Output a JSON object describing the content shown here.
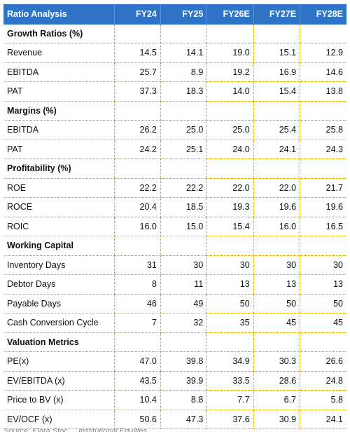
{
  "table": {
    "header": [
      "Ratio Analysis",
      "FY24",
      "FY25",
      "FY26E",
      "FY27E",
      "FY28E"
    ],
    "rows": [
      {
        "type": "section",
        "label": "Growth Ratios (%)"
      },
      {
        "type": "data",
        "label": "Revenue",
        "values": [
          "14.5",
          "14.1",
          "19.0",
          "15.1",
          "12.9"
        ]
      },
      {
        "type": "data",
        "label": "EBITDA",
        "values": [
          "25.7",
          "8.9",
          "19.2",
          "16.9",
          "14.6"
        ]
      },
      {
        "type": "data",
        "label": "PAT",
        "values": [
          "37.3",
          "18.3",
          "14.0",
          "15.4",
          "13.8"
        ]
      },
      {
        "type": "section",
        "label": "Margins (%)"
      },
      {
        "type": "data",
        "label": "EBITDA",
        "values": [
          "26.2",
          "25.0",
          "25.0",
          "25.4",
          "25.8"
        ]
      },
      {
        "type": "data",
        "label": "PAT",
        "values": [
          "24.2",
          "25.1",
          "24.0",
          "24.1",
          "24.3"
        ]
      },
      {
        "type": "section",
        "label": "Profitability (%)"
      },
      {
        "type": "data",
        "label": "ROE",
        "values": [
          "22.2",
          "22.2",
          "22.0",
          "22.0",
          "21.7"
        ]
      },
      {
        "type": "data",
        "label": "ROCE",
        "values": [
          "20.4",
          "18.5",
          "19.3",
          "19.6",
          "19.6"
        ]
      },
      {
        "type": "data",
        "label": "ROIC",
        "values": [
          "16.0",
          "15.0",
          "15.4",
          "16.0",
          "16.5"
        ]
      },
      {
        "type": "section",
        "label": "Working Capital"
      },
      {
        "type": "data",
        "label": "Inventory Days",
        "values": [
          "31",
          "30",
          "30",
          "30",
          "30"
        ]
      },
      {
        "type": "data",
        "label": "Debtor Days",
        "values": [
          "8",
          "11",
          "13",
          "13",
          "13"
        ]
      },
      {
        "type": "data",
        "label": "Payable Days",
        "values": [
          "46",
          "49",
          "50",
          "50",
          "50"
        ]
      },
      {
        "type": "data",
        "label": "Cash Conversion Cycle",
        "values": [
          "7",
          "32",
          "35",
          "45",
          "45"
        ]
      },
      {
        "type": "section",
        "label": "Valuation Metrics"
      },
      {
        "type": "data",
        "label": "PE(x)",
        "values": [
          "47.0",
          "39.8",
          "34.9",
          "30.3",
          "26.6"
        ]
      },
      {
        "type": "data",
        "label": "EV/EBITDA (x)",
        "values": [
          "43.5",
          "39.9",
          "33.5",
          "28.6",
          "24.8"
        ]
      },
      {
        "type": "data",
        "label": "Price to BV (x)",
        "values": [
          "10.4",
          "8.8",
          "7.7",
          "6.7",
          "5.8"
        ]
      },
      {
        "type": "data",
        "label": "EV/OCF (x)",
        "values": [
          "50.6",
          "47.3",
          "37.6",
          "30.9",
          "24.1"
        ]
      }
    ]
  },
  "footer": {
    "source_text": "Source: Elara Stoc..., Institutional Equities"
  },
  "colors": {
    "header_bg": "#2f74c6",
    "grid": "#d9a300"
  }
}
